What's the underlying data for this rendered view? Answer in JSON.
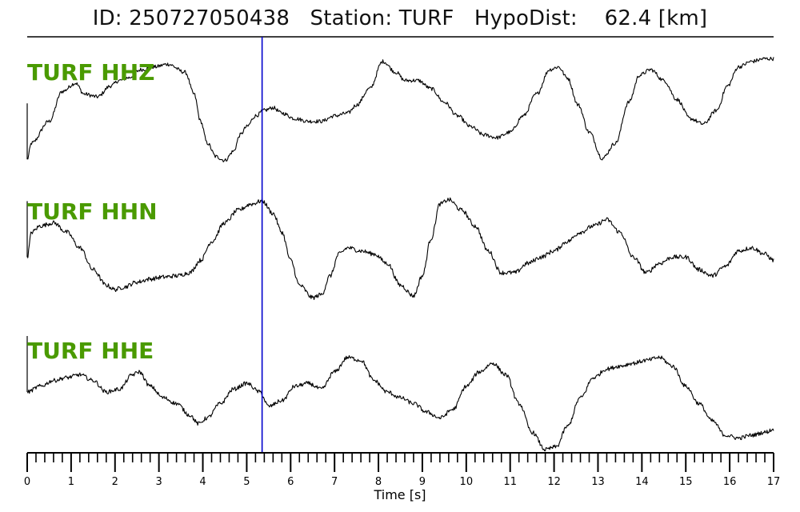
{
  "header": {
    "title": "ID: 250727050438   Station: TURF   HypoDist:    62.4 [km]"
  },
  "chart_data": {
    "type": "line",
    "xlabel": "Time [s]",
    "xlim": [
      0,
      17
    ],
    "x_ticks": [
      "0",
      "1",
      "2",
      "3",
      "4",
      "5",
      "6",
      "7",
      "8",
      "9",
      "10",
      "11",
      "12",
      "13",
      "14",
      "15",
      "16",
      "17"
    ],
    "minor_tick_step": 0.2,
    "pick_time": 5.35,
    "colors": {
      "trace": "#000000",
      "label": "#4a9a00",
      "pick": "#0000cc"
    },
    "series": [
      {
        "name": "TURF HHZ",
        "x": [
          0,
          0.1,
          0.5,
          0.8,
          1.1,
          1.3,
          1.6,
          1.9,
          2.1,
          2.3,
          2.6,
          2.9,
          3.2,
          3.6,
          3.8,
          3.95,
          4.1,
          4.3,
          4.5,
          4.7,
          4.85,
          5.0,
          5.2,
          5.4,
          5.6,
          5.8,
          6.1,
          6.4,
          6.7,
          7.0,
          7.3,
          7.5,
          7.8,
          8.1,
          8.4,
          8.6,
          8.9,
          9.2,
          9.5,
          9.8,
          10.1,
          10.4,
          10.7,
          11.0,
          11.3,
          11.6,
          11.9,
          12.1,
          12.3,
          12.55,
          12.8,
          13.1,
          13.4,
          13.7,
          13.95,
          14.2,
          14.5,
          14.8,
          15.1,
          15.4,
          15.7,
          15.95,
          16.2,
          16.5,
          16.8,
          17.0
        ],
        "y": [
          -0.9,
          -0.6,
          -0.2,
          0.35,
          0.5,
          0.3,
          0.25,
          0.45,
          0.55,
          0.6,
          0.75,
          0.8,
          0.85,
          0.7,
          0.3,
          -0.2,
          -0.6,
          -0.85,
          -0.92,
          -0.75,
          -0.45,
          -0.3,
          -0.1,
          0,
          0.05,
          -0.05,
          -0.15,
          -0.2,
          -0.2,
          -0.1,
          -0.05,
          0.1,
          0.4,
          0.9,
          0.7,
          0.55,
          0.55,
          0.4,
          0.15,
          -0.1,
          -0.3,
          -0.45,
          -0.5,
          -0.4,
          -0.1,
          0.3,
          0.75,
          0.8,
          0.6,
          0.1,
          -0.4,
          -0.88,
          -0.6,
          0.15,
          0.65,
          0.75,
          0.55,
          0.2,
          -0.15,
          -0.25,
          0,
          0.45,
          0.8,
          0.9,
          0.95,
          0.95
        ]
      },
      {
        "name": "TURF HHN",
        "x": [
          0,
          0.1,
          0.3,
          0.6,
          0.9,
          1.2,
          1.5,
          1.8,
          2.0,
          2.2,
          2.5,
          2.8,
          3.1,
          3.4,
          3.7,
          3.95,
          4.2,
          4.5,
          4.8,
          5.1,
          5.35,
          5.6,
          5.8,
          6.0,
          6.2,
          6.5,
          6.7,
          6.9,
          7.1,
          7.3,
          7.6,
          7.9,
          8.2,
          8.5,
          8.8,
          9.0,
          9.2,
          9.4,
          9.6,
          9.9,
          10.2,
          10.5,
          10.8,
          11.1,
          11.4,
          11.7,
          12.0,
          12.3,
          12.6,
          12.9,
          13.2,
          13.5,
          13.8,
          14.1,
          14.4,
          14.7,
          15.0,
          15.3,
          15.6,
          15.9,
          16.2,
          16.5,
          16.8,
          17.0
        ],
        "y": [
          -0.3,
          0.1,
          0.2,
          0.25,
          0.1,
          -0.15,
          -0.5,
          -0.75,
          -0.82,
          -0.78,
          -0.7,
          -0.65,
          -0.62,
          -0.6,
          -0.55,
          -0.35,
          -0.05,
          0.25,
          0.45,
          0.55,
          0.6,
          0.4,
          0.1,
          -0.35,
          -0.75,
          -0.95,
          -0.9,
          -0.6,
          -0.25,
          -0.15,
          -0.2,
          -0.25,
          -0.4,
          -0.75,
          -0.92,
          -0.6,
          0.0,
          0.55,
          0.62,
          0.45,
          0.2,
          -0.2,
          -0.55,
          -0.55,
          -0.4,
          -0.3,
          -0.2,
          -0.05,
          0.1,
          0.2,
          0.3,
          0.1,
          -0.3,
          -0.55,
          -0.4,
          -0.3,
          -0.3,
          -0.5,
          -0.6,
          -0.45,
          -0.2,
          -0.15,
          -0.25,
          -0.35
        ]
      },
      {
        "name": "TURF HHE",
        "x": [
          0,
          0.3,
          0.6,
          0.9,
          1.2,
          1.5,
          1.8,
          2.1,
          2.4,
          2.55,
          2.8,
          3.1,
          3.4,
          3.7,
          3.9,
          4.1,
          4.4,
          4.7,
          5.0,
          5.3,
          5.5,
          5.8,
          6.1,
          6.4,
          6.7,
          7.0,
          7.3,
          7.6,
          7.9,
          8.2,
          8.5,
          8.8,
          9.1,
          9.4,
          9.7,
          10.0,
          10.3,
          10.6,
          10.9,
          11.2,
          11.5,
          11.8,
          12.05,
          12.3,
          12.6,
          12.9,
          13.2,
          13.5,
          13.8,
          14.1,
          14.4,
          14.7,
          15.0,
          15.3,
          15.6,
          15.9,
          16.2,
          16.5,
          16.8,
          17.0
        ],
        "y": [
          0.0,
          0.1,
          0.2,
          0.25,
          0.3,
          0.2,
          0.0,
          0.05,
          0.3,
          0.35,
          0.1,
          -0.1,
          -0.2,
          -0.4,
          -0.55,
          -0.45,
          -0.2,
          0.05,
          0.15,
          0.0,
          -0.25,
          -0.15,
          0.1,
          0.15,
          0.05,
          0.35,
          0.6,
          0.55,
          0.2,
          0.0,
          -0.1,
          -0.2,
          -0.35,
          -0.45,
          -0.3,
          0.1,
          0.35,
          0.5,
          0.3,
          -0.2,
          -0.7,
          -1.0,
          -0.95,
          -0.6,
          -0.1,
          0.25,
          0.4,
          0.45,
          0.5,
          0.55,
          0.6,
          0.45,
          0.1,
          -0.2,
          -0.5,
          -0.75,
          -0.8,
          -0.75,
          -0.7,
          -0.65
        ]
      }
    ]
  }
}
